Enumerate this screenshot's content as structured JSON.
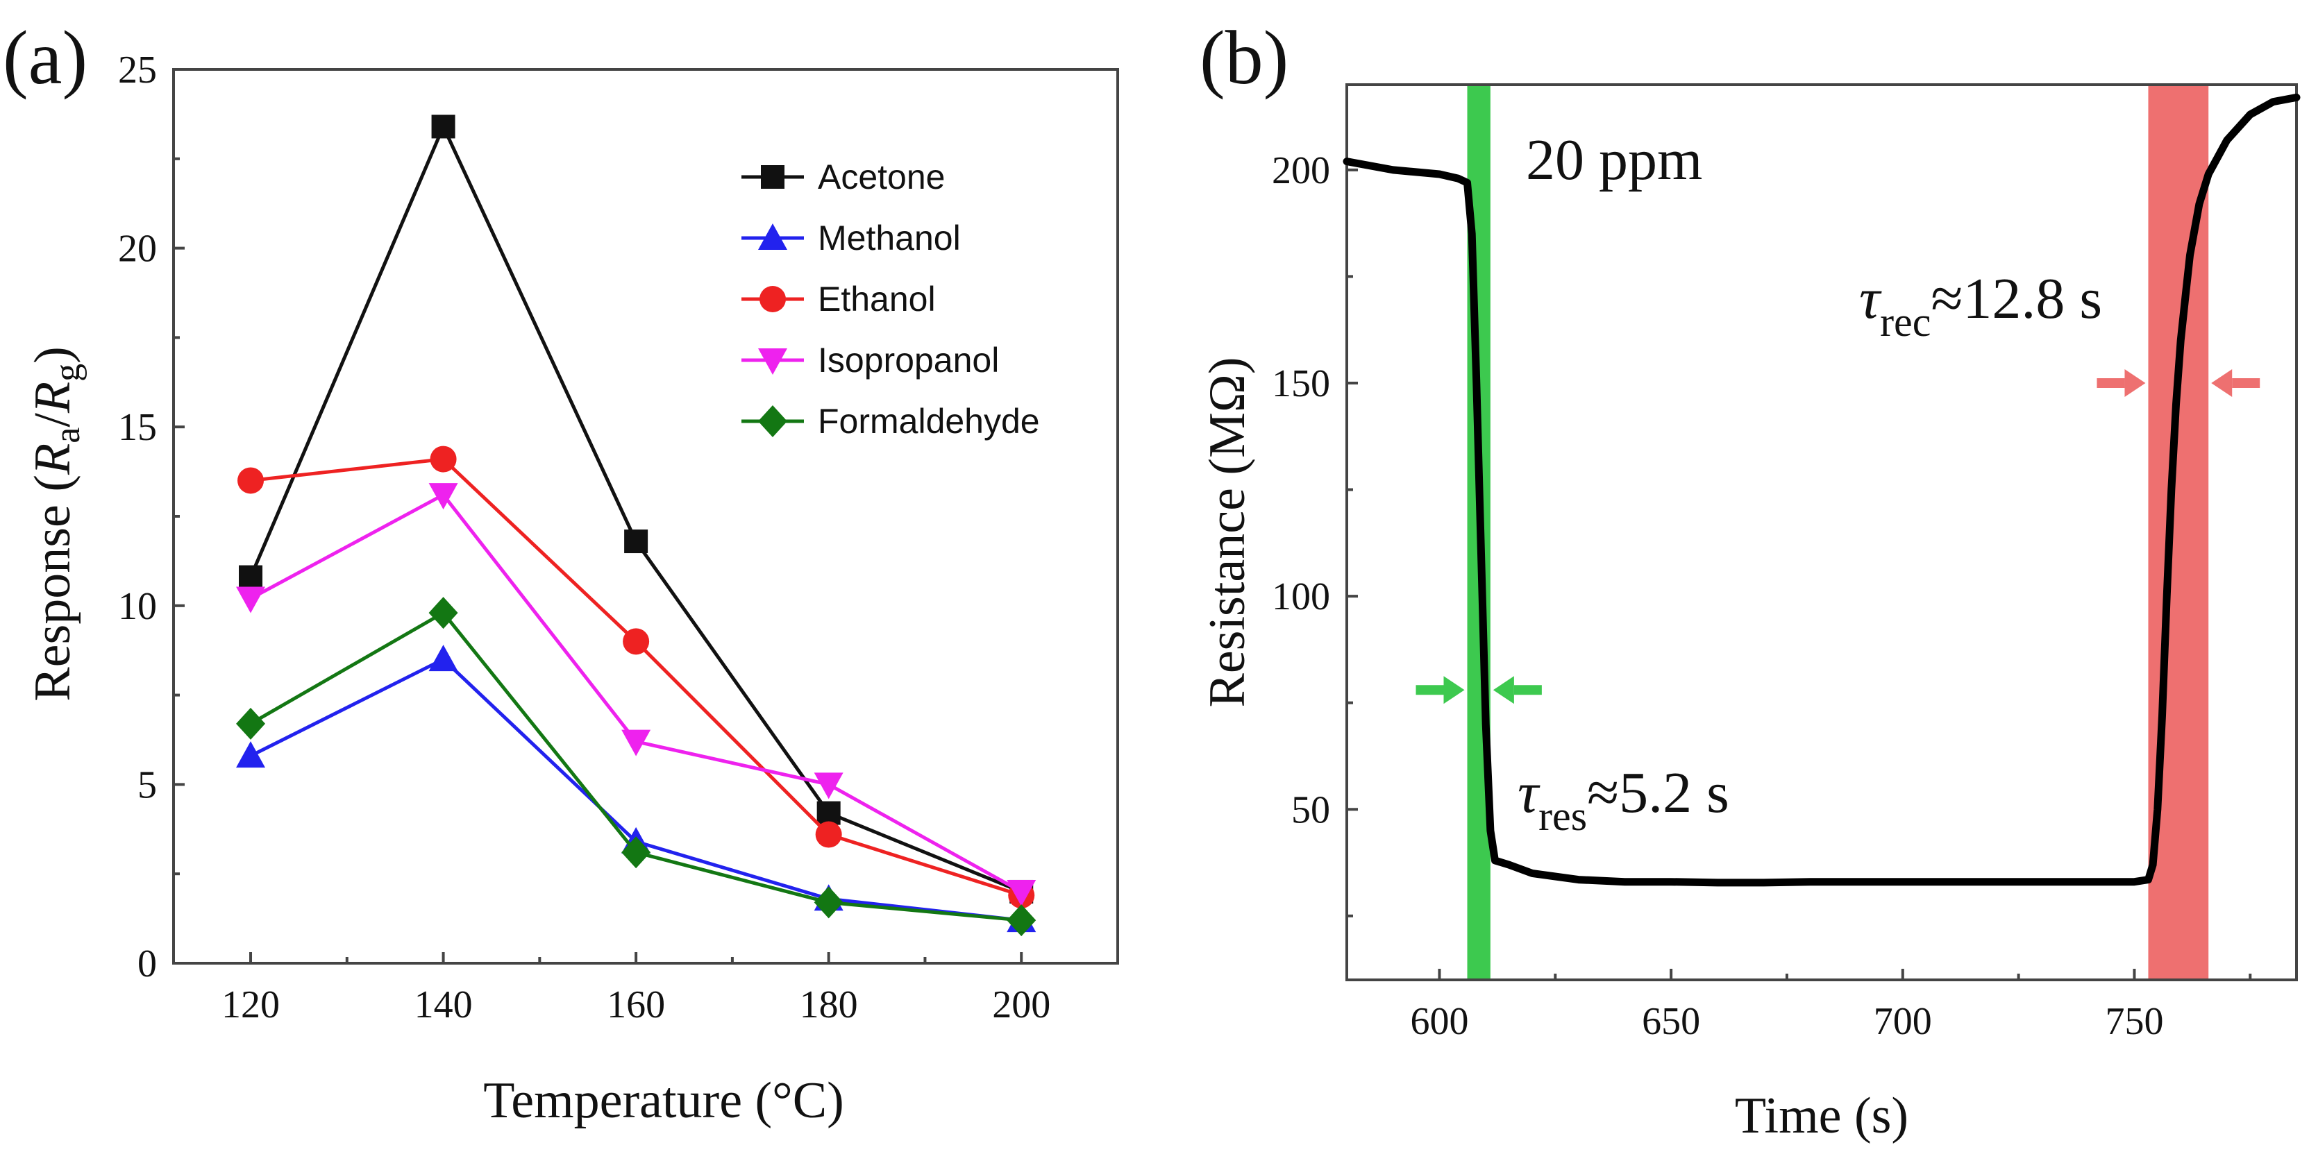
{
  "chart_data": [
    {
      "panel_label": "(a)",
      "type": "line",
      "xlabel": "Temperature (°C)",
      "ylabel": "Response (Ra/Rg)",
      "ylabel_parts": {
        "pre": "Response (",
        "r1": "R",
        "s1": "a",
        "slash": "/",
        "r2": "R",
        "s2": "g",
        "post": ")"
      },
      "x": [
        120,
        140,
        160,
        180,
        200
      ],
      "xlim": [
        112,
        210
      ],
      "ylim": [
        0,
        25
      ],
      "xticks": [
        120,
        140,
        160,
        180,
        200
      ],
      "yticks": [
        0,
        5,
        10,
        15,
        20,
        25
      ],
      "legend_position": "top-right",
      "series": [
        {
          "name": "Acetone",
          "color": "#111111",
          "marker": "square",
          "values": [
            10.8,
            23.4,
            11.8,
            4.2,
            2.0
          ]
        },
        {
          "name": "Methanol",
          "color": "#2222ee",
          "marker": "triangle-up",
          "values": [
            5.8,
            8.5,
            3.4,
            1.8,
            1.2
          ]
        },
        {
          "name": "Ethanol",
          "color": "#ee2222",
          "marker": "circle",
          "values": [
            13.5,
            14.1,
            9.0,
            3.6,
            1.9
          ]
        },
        {
          "name": "Isopropanol",
          "color": "#ee22ee",
          "marker": "triangle-down",
          "values": [
            10.2,
            13.1,
            6.2,
            5.0,
            2.0
          ]
        },
        {
          "name": "Formaldehyde",
          "color": "#137713",
          "marker": "diamond",
          "values": [
            6.7,
            9.8,
            3.1,
            1.7,
            1.2
          ]
        }
      ]
    },
    {
      "panel_label": "(b)",
      "type": "line",
      "xlabel": "Time (s)",
      "ylabel": "Resistance (MΩ)",
      "xlim": [
        580,
        785
      ],
      "ylim": [
        10,
        220
      ],
      "xticks": [
        600,
        650,
        700,
        750
      ],
      "yticks": [
        50,
        100,
        150,
        200
      ],
      "series": [
        {
          "name": "Resistance",
          "color": "#000000",
          "x": [
            580,
            590,
            600,
            604,
            606,
            607,
            608,
            609,
            610,
            611,
            612,
            615,
            620,
            630,
            640,
            650,
            660,
            670,
            680,
            700,
            720,
            740,
            750,
            753,
            754,
            755,
            756,
            757,
            758,
            759,
            760,
            761,
            762,
            764,
            766,
            770,
            775,
            780,
            785
          ],
          "y": [
            202,
            200,
            199,
            198,
            197,
            185,
            150,
            110,
            70,
            45,
            38,
            37,
            35,
            33.5,
            33,
            33,
            32.8,
            32.8,
            33,
            33,
            33,
            33,
            33,
            33.5,
            37,
            50,
            72,
            100,
            125,
            145,
            160,
            170,
            180,
            192,
            199,
            207,
            213,
            216,
            217
          ]
        }
      ],
      "response_band": {
        "x_start": 606,
        "x_end": 611,
        "color": "#3dc94f"
      },
      "recovery_band": {
        "x_start": 753,
        "x_end": 766,
        "color": "#ee7070"
      },
      "response_arrows_y": 78,
      "recovery_arrows_y": 150,
      "annotations": {
        "concentration": "20 ppm",
        "tau_res": {
          "symbol": "τ",
          "sub": "res",
          "text": "≈5.2 s"
        },
        "tau_rec": {
          "symbol": "τ",
          "sub": "rec",
          "text": "≈12.8 s"
        }
      }
    }
  ]
}
